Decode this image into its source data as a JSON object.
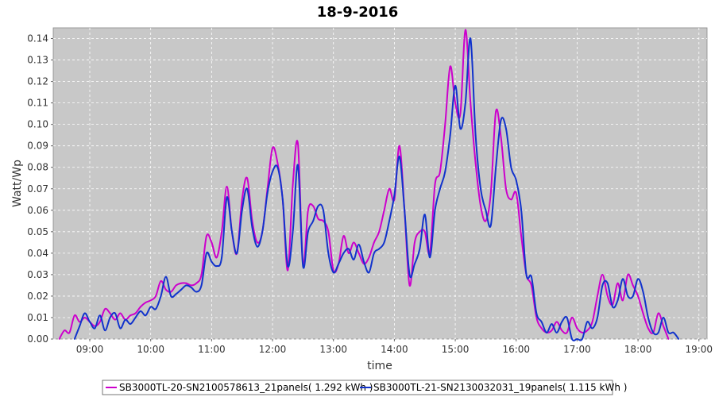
{
  "chart_data": {
    "type": "line",
    "title": "18-9-2016",
    "xlabel": "time",
    "ylabel": "Watt/Wp",
    "xlim": [
      "08:24",
      "19:08"
    ],
    "ylim": [
      0,
      0.145
    ],
    "x_ticks": [
      "09:00",
      "10:00",
      "11:00",
      "12:00",
      "13:00",
      "14:00",
      "15:00",
      "16:00",
      "17:00",
      "18:00",
      "19:00"
    ],
    "y_ticks": [
      "0.00",
      "0.01",
      "0.02",
      "0.03",
      "0.04",
      "0.05",
      "0.06",
      "0.07",
      "0.08",
      "0.09",
      "0.10",
      "0.11",
      "0.12",
      "0.13",
      "0.14"
    ],
    "grid": true,
    "background": "#c8c8c8",
    "legend_position": "bottom",
    "series": [
      {
        "name": "SB3000TL-20-SN2100578613_21panels( 1.292 kWh )",
        "color": "#cc00cc",
        "points": [
          [
            "08:30",
            0.0
          ],
          [
            "08:35",
            0.004
          ],
          [
            "08:40",
            0.003
          ],
          [
            "08:45",
            0.011
          ],
          [
            "08:50",
            0.008
          ],
          [
            "08:55",
            0.01
          ],
          [
            "09:00",
            0.008
          ],
          [
            "09:05",
            0.006
          ],
          [
            "09:10",
            0.008
          ],
          [
            "09:15",
            0.014
          ],
          [
            "09:20",
            0.012
          ],
          [
            "09:25",
            0.009
          ],
          [
            "09:30",
            0.012
          ],
          [
            "09:35",
            0.009
          ],
          [
            "09:40",
            0.011
          ],
          [
            "09:45",
            0.012
          ],
          [
            "09:50",
            0.015
          ],
          [
            "09:55",
            0.017
          ],
          [
            "10:00",
            0.018
          ],
          [
            "10:05",
            0.02
          ],
          [
            "10:10",
            0.027
          ],
          [
            "10:15",
            0.023
          ],
          [
            "10:20",
            0.022
          ],
          [
            "10:25",
            0.025
          ],
          [
            "10:30",
            0.026
          ],
          [
            "10:35",
            0.026
          ],
          [
            "10:40",
            0.025
          ],
          [
            "10:45",
            0.026
          ],
          [
            "10:50",
            0.03
          ],
          [
            "10:55",
            0.048
          ],
          [
            "11:00",
            0.045
          ],
          [
            "11:05",
            0.038
          ],
          [
            "11:10",
            0.05
          ],
          [
            "11:15",
            0.071
          ],
          [
            "11:20",
            0.05
          ],
          [
            "11:25",
            0.04
          ],
          [
            "11:30",
            0.065
          ],
          [
            "11:35",
            0.075
          ],
          [
            "11:40",
            0.055
          ],
          [
            "11:45",
            0.045
          ],
          [
            "11:50",
            0.05
          ],
          [
            "11:55",
            0.07
          ],
          [
            "12:00",
            0.089
          ],
          [
            "12:05",
            0.082
          ],
          [
            "12:10",
            0.065
          ],
          [
            "12:15",
            0.032
          ],
          [
            "12:20",
            0.072
          ],
          [
            "12:25",
            0.091
          ],
          [
            "12:30",
            0.035
          ],
          [
            "12:35",
            0.06
          ],
          [
            "12:40",
            0.062
          ],
          [
            "12:45",
            0.056
          ],
          [
            "12:50",
            0.055
          ],
          [
            "12:55",
            0.05
          ],
          [
            "13:00",
            0.032
          ],
          [
            "13:05",
            0.035
          ],
          [
            "13:10",
            0.048
          ],
          [
            "13:15",
            0.04
          ],
          [
            "13:20",
            0.045
          ],
          [
            "13:25",
            0.04
          ],
          [
            "13:30",
            0.035
          ],
          [
            "13:35",
            0.038
          ],
          [
            "13:40",
            0.045
          ],
          [
            "13:45",
            0.05
          ],
          [
            "13:50",
            0.06
          ],
          [
            "13:55",
            0.07
          ],
          [
            "14:00",
            0.065
          ],
          [
            "14:05",
            0.09
          ],
          [
            "14:10",
            0.06
          ],
          [
            "14:15",
            0.025
          ],
          [
            "14:20",
            0.045
          ],
          [
            "14:25",
            0.05
          ],
          [
            "14:30",
            0.05
          ],
          [
            "14:35",
            0.04
          ],
          [
            "14:40",
            0.072
          ],
          [
            "14:45",
            0.078
          ],
          [
            "14:50",
            0.1
          ],
          [
            "14:55",
            0.127
          ],
          [
            "15:00",
            0.11
          ],
          [
            "15:05",
            0.105
          ],
          [
            "15:10",
            0.144
          ],
          [
            "15:15",
            0.11
          ],
          [
            "15:20",
            0.082
          ],
          [
            "15:25",
            0.062
          ],
          [
            "15:30",
            0.055
          ],
          [
            "15:35",
            0.068
          ],
          [
            "15:40",
            0.106
          ],
          [
            "15:45",
            0.094
          ],
          [
            "15:50",
            0.07
          ],
          [
            "15:55",
            0.065
          ],
          [
            "16:00",
            0.068
          ],
          [
            "16:05",
            0.048
          ],
          [
            "16:10",
            0.03
          ],
          [
            "16:15",
            0.025
          ],
          [
            "16:20",
            0.01
          ],
          [
            "16:25",
            0.005
          ],
          [
            "16:30",
            0.003
          ],
          [
            "16:35",
            0.004
          ],
          [
            "16:40",
            0.008
          ],
          [
            "16:45",
            0.004
          ],
          [
            "16:50",
            0.003
          ],
          [
            "16:55",
            0.01
          ],
          [
            "17:00",
            0.005
          ],
          [
            "17:05",
            0.003
          ],
          [
            "17:10",
            0.004
          ],
          [
            "17:15",
            0.008
          ],
          [
            "17:20",
            0.02
          ],
          [
            "17:25",
            0.03
          ],
          [
            "17:30",
            0.02
          ],
          [
            "17:35",
            0.016
          ],
          [
            "17:40",
            0.026
          ],
          [
            "17:45",
            0.018
          ],
          [
            "17:50",
            0.03
          ],
          [
            "17:55",
            0.025
          ],
          [
            "18:00",
            0.02
          ],
          [
            "18:05",
            0.012
          ],
          [
            "18:10",
            0.005
          ],
          [
            "18:15",
            0.003
          ],
          [
            "18:20",
            0.012
          ],
          [
            "18:25",
            0.006
          ],
          [
            "18:30",
            0.0
          ]
        ]
      },
      {
        "name": "SB3000TL-21-SN2130032031_19panels( 1.115 kWh )",
        "color": "#1133cc",
        "points": [
          [
            "08:45",
            0.0
          ],
          [
            "08:50",
            0.006
          ],
          [
            "08:55",
            0.012
          ],
          [
            "09:00",
            0.008
          ],
          [
            "09:05",
            0.005
          ],
          [
            "09:10",
            0.011
          ],
          [
            "09:15",
            0.004
          ],
          [
            "09:20",
            0.01
          ],
          [
            "09:25",
            0.012
          ],
          [
            "09:30",
            0.005
          ],
          [
            "09:35",
            0.009
          ],
          [
            "09:40",
            0.007
          ],
          [
            "09:45",
            0.01
          ],
          [
            "09:50",
            0.013
          ],
          [
            "09:55",
            0.011
          ],
          [
            "10:00",
            0.015
          ],
          [
            "10:05",
            0.014
          ],
          [
            "10:10",
            0.02
          ],
          [
            "10:15",
            0.029
          ],
          [
            "10:20",
            0.02
          ],
          [
            "10:25",
            0.021
          ],
          [
            "10:30",
            0.023
          ],
          [
            "10:35",
            0.025
          ],
          [
            "10:40",
            0.024
          ],
          [
            "10:45",
            0.022
          ],
          [
            "10:50",
            0.025
          ],
          [
            "10:55",
            0.04
          ],
          [
            "11:00",
            0.036
          ],
          [
            "11:05",
            0.034
          ],
          [
            "11:10",
            0.038
          ],
          [
            "11:15",
            0.066
          ],
          [
            "11:20",
            0.05
          ],
          [
            "11:25",
            0.04
          ],
          [
            "11:30",
            0.06
          ],
          [
            "11:35",
            0.07
          ],
          [
            "11:40",
            0.052
          ],
          [
            "11:45",
            0.043
          ],
          [
            "11:50",
            0.05
          ],
          [
            "11:55",
            0.068
          ],
          [
            "12:00",
            0.078
          ],
          [
            "12:05",
            0.08
          ],
          [
            "12:10",
            0.065
          ],
          [
            "12:15",
            0.034
          ],
          [
            "12:20",
            0.05
          ],
          [
            "12:25",
            0.081
          ],
          [
            "12:30",
            0.034
          ],
          [
            "12:35",
            0.05
          ],
          [
            "12:40",
            0.055
          ],
          [
            "12:45",
            0.062
          ],
          [
            "12:50",
            0.06
          ],
          [
            "12:55",
            0.04
          ],
          [
            "13:00",
            0.031
          ],
          [
            "13:05",
            0.035
          ],
          [
            "13:10",
            0.04
          ],
          [
            "13:15",
            0.042
          ],
          [
            "13:20",
            0.037
          ],
          [
            "13:25",
            0.044
          ],
          [
            "13:30",
            0.036
          ],
          [
            "13:35",
            0.031
          ],
          [
            "13:40",
            0.04
          ],
          [
            "13:45",
            0.042
          ],
          [
            "13:50",
            0.045
          ],
          [
            "13:55",
            0.055
          ],
          [
            "14:00",
            0.067
          ],
          [
            "14:05",
            0.085
          ],
          [
            "14:10",
            0.06
          ],
          [
            "14:15",
            0.03
          ],
          [
            "14:20",
            0.035
          ],
          [
            "14:25",
            0.042
          ],
          [
            "14:30",
            0.058
          ],
          [
            "14:35",
            0.038
          ],
          [
            "14:40",
            0.06
          ],
          [
            "14:45",
            0.07
          ],
          [
            "14:50",
            0.078
          ],
          [
            "14:55",
            0.095
          ],
          [
            "15:00",
            0.118
          ],
          [
            "15:05",
            0.098
          ],
          [
            "15:10",
            0.11
          ],
          [
            "15:15",
            0.14
          ],
          [
            "15:20",
            0.095
          ],
          [
            "15:25",
            0.07
          ],
          [
            "15:30",
            0.06
          ],
          [
            "15:35",
            0.053
          ],
          [
            "15:40",
            0.08
          ],
          [
            "15:45",
            0.102
          ],
          [
            "15:50",
            0.098
          ],
          [
            "15:55",
            0.08
          ],
          [
            "16:00",
            0.074
          ],
          [
            "16:05",
            0.06
          ],
          [
            "16:10",
            0.03
          ],
          [
            "16:15",
            0.029
          ],
          [
            "16:20",
            0.012
          ],
          [
            "16:25",
            0.008
          ],
          [
            "16:30",
            0.003
          ],
          [
            "16:35",
            0.007
          ],
          [
            "16:40",
            0.003
          ],
          [
            "16:45",
            0.008
          ],
          [
            "16:50",
            0.01
          ],
          [
            "16:55",
            0.0
          ],
          [
            "17:00",
            0.0
          ],
          [
            "17:05",
            0.0
          ],
          [
            "17:10",
            0.008
          ],
          [
            "17:15",
            0.005
          ],
          [
            "17:20",
            0.01
          ],
          [
            "17:25",
            0.025
          ],
          [
            "17:30",
            0.026
          ],
          [
            "17:35",
            0.015
          ],
          [
            "17:40",
            0.018
          ],
          [
            "17:45",
            0.028
          ],
          [
            "17:50",
            0.02
          ],
          [
            "17:55",
            0.02
          ],
          [
            "18:00",
            0.028
          ],
          [
            "18:05",
            0.022
          ],
          [
            "18:10",
            0.01
          ],
          [
            "18:15",
            0.003
          ],
          [
            "18:20",
            0.003
          ],
          [
            "18:25",
            0.01
          ],
          [
            "18:30",
            0.003
          ],
          [
            "18:35",
            0.003
          ],
          [
            "18:40",
            0.0
          ]
        ]
      }
    ]
  }
}
